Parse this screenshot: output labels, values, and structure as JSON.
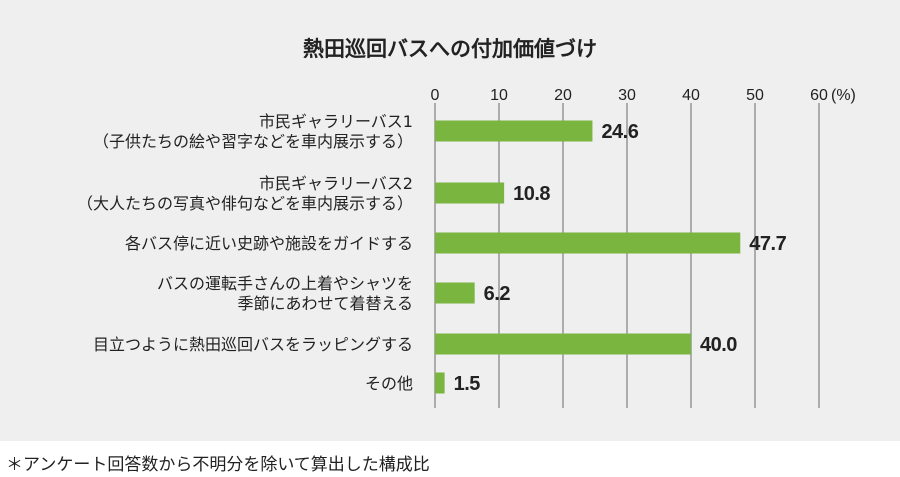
{
  "chart_data": {
    "type": "bar",
    "orientation": "horizontal",
    "title": "熱田巡回バスへの付加価値づけ",
    "unit": "(%)",
    "xlim": [
      0,
      60
    ],
    "ticks": [
      "0",
      "10",
      "20",
      "30",
      "40",
      "50",
      "60"
    ],
    "grid": true,
    "categories": [
      [
        "市民ギャラリーバス1",
        "（子供たちの絵や習字などを車内展示する）"
      ],
      [
        "市民ギャラリーバス2",
        "（大人たちの写真や俳句などを車内展示する）"
      ],
      [
        "各バス停に近い史跡や施設をガイドする"
      ],
      [
        "バスの運転手さんの上着やシャツを",
        "季節にあわせて着替える"
      ],
      [
        "目立つようにに熱田巡回バスをラッピングする"
      ],
      [
        "その他"
      ]
    ],
    "values": [
      24.6,
      10.8,
      47.7,
      6.2,
      40.0,
      1.5
    ],
    "value_labels": [
      "24.6",
      "10.8",
      "47.7",
      "6.2",
      "40.0",
      "1.5"
    ],
    "bar_color": "#7ab63f"
  },
  "footnote": "＊アンケート回答数から不明分を除いて算出した構成比"
}
